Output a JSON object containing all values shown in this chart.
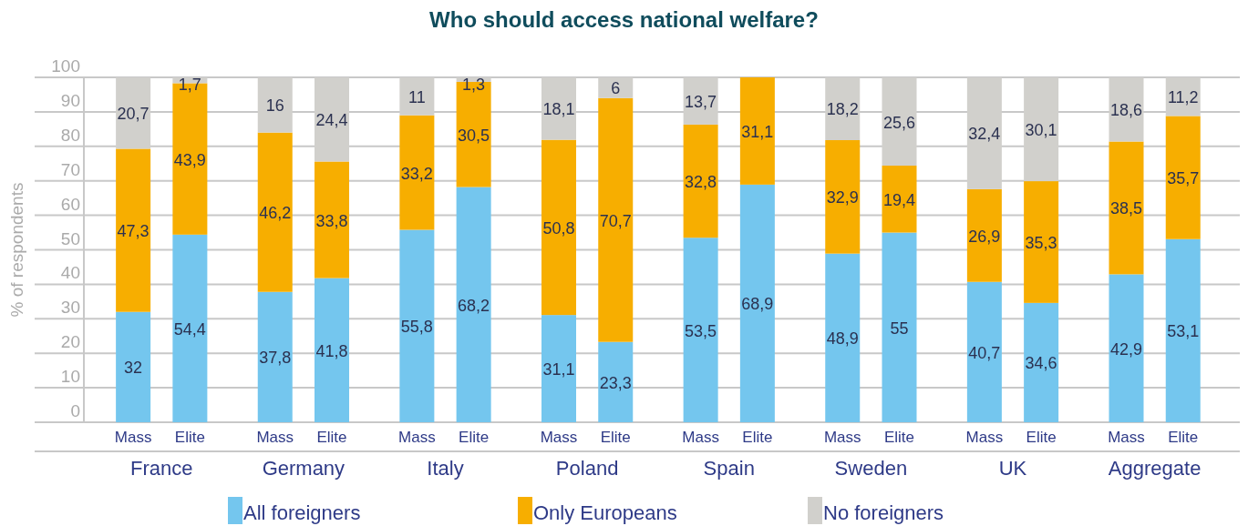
{
  "chart_data": {
    "type": "bar",
    "stacked": true,
    "title": "Who should access national welfare?",
    "ylabel": "% of respondents",
    "categories": [
      "Mass",
      "Elite",
      "Mass",
      "Elite",
      "Mass",
      "Elite",
      "Mass",
      "Elite",
      "Mass",
      "Elite",
      "Mass",
      "Elite",
      "Mass",
      "Elite",
      "Mass",
      "Elite"
    ],
    "annotations": [
      "France",
      "Germany",
      "Italy",
      "Poland",
      "Spain",
      "Sweden",
      "UK",
      "Aggregate"
    ],
    "ylim": [
      0,
      100
    ],
    "yticks": [
      0,
      10,
      20,
      30,
      40,
      50,
      60,
      70,
      80,
      90,
      100
    ],
    "grid": "y",
    "legend": "bottom",
    "series": [
      {
        "name": "All foreigners",
        "color": "#74c6ee",
        "values": [
          32,
          54.4,
          37.8,
          41.8,
          55.8,
          68.2,
          31.1,
          23.3,
          53.5,
          68.9,
          48.9,
          55,
          40.7,
          34.6,
          42.9,
          53.1
        ],
        "value_labels": [
          "32",
          "54,4",
          "37,8",
          "41,8",
          "55,8",
          "68,2",
          "31,1",
          "23,3",
          "53,5",
          "68,9",
          "48,9",
          "55",
          "40,7",
          "34,6",
          "42,9",
          "53,1"
        ]
      },
      {
        "name": "Only Europeans",
        "color": "#f7ae00",
        "values": [
          47.3,
          43.9,
          46.2,
          33.8,
          33.2,
          30.5,
          50.8,
          70.7,
          32.8,
          31.1,
          32.9,
          19.4,
          26.9,
          35.3,
          38.5,
          35.7
        ],
        "value_labels": [
          "47,3",
          "43,9",
          "46,2",
          "33,8",
          "33,2",
          "30,5",
          "50,8",
          "70,7",
          "32,8",
          "31,1",
          "32,9",
          "19,4",
          "26,9",
          "35,3",
          "38,5",
          "35,7"
        ]
      },
      {
        "name": "No foreigners",
        "color": "#d1d0cc",
        "values": [
          20.7,
          1.7,
          16,
          24.4,
          11,
          1.3,
          18.1,
          6,
          13.7,
          null,
          18.2,
          25.6,
          32.4,
          30.1,
          18.6,
          11.2
        ],
        "value_labels": [
          "20,7",
          "1,7",
          "16",
          "24,4",
          "11",
          "1,3",
          "18,1",
          "6",
          "13,7",
          null,
          "18,2",
          "25,6",
          "32,4",
          "30,1",
          "18,6",
          "11,2"
        ]
      }
    ]
  }
}
